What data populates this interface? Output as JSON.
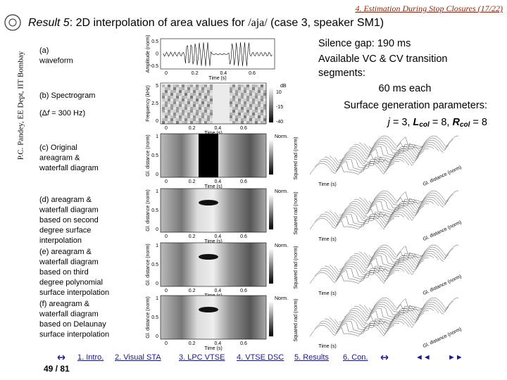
{
  "header": {
    "section": "4. Estimation During Stop Closures (17/22)",
    "title_prefix": "Result 5",
    "title_main": ": 2D interpolation of area values for ",
    "title_phon": "/aja/",
    "title_suffix": " (case 3, speaker SM1)"
  },
  "side_label": "P.C. Pandey, EE Dept, IIT Bombay",
  "notes": {
    "lines": [
      "Silence gap: 190 ms",
      "Available VC & CV transition",
      "segments:",
      "60 ms each",
      "Surface generation parameters:"
    ],
    "params": [
      "j",
      " = 3, ",
      "L",
      "col",
      " = 8, ",
      "R",
      "col",
      " = 8"
    ]
  },
  "captions": [
    [
      "(a)",
      "waveform"
    ],
    [
      "(b) Spectrogram"
    ],
    [
      "(c) Original",
      "areagram &",
      "waterfall diagram"
    ],
    [
      "(d) areagram &",
      "waterfall diagram",
      "based on second",
      "degree surface",
      "interpolation"
    ],
    [
      "(e) areagram &",
      "waterfall diagram",
      "based on third",
      "degree polynomial",
      "surface interpolation"
    ],
    [
      "(f) areagram &",
      "waterfall diagram",
      "based on Delaunay",
      "surface interpolation"
    ]
  ],
  "resolution": [
    "(Δ",
    "f",
    " = 300 Hz)"
  ],
  "figures": {
    "waveform": {
      "ylabel": "Amplitude (norm)",
      "yticks": [
        "0.5",
        "0",
        "-0.5"
      ],
      "xticks": [
        "0",
        "0.2",
        "0.4",
        "0.6"
      ],
      "xlabel": "Time (s)"
    },
    "spectrogram": {
      "ylabel": "Frequency (kHz)",
      "yticks": [
        "5",
        "2.5",
        "0"
      ],
      "xticks": [
        "0",
        "0.2",
        "0.4",
        "0.6"
      ],
      "xlabel": "Time (s)",
      "colorbar_title": "dB",
      "colorbar_ticks": [
        "10",
        "-15",
        "-40"
      ]
    },
    "areagrams": [
      {
        "ylabel": "Gl. distance (norm)",
        "yticks": [
          "1",
          "0.5",
          "0"
        ],
        "xticks": [
          "0",
          "0.2",
          "0.4",
          "0.6"
        ],
        "xlabel": "Time (s)",
        "colorbar_title": "Norm."
      },
      {
        "ylabel": "Gl. distance (norm)",
        "yticks": [
          "1",
          "0.5",
          "0"
        ],
        "xticks": [
          "0",
          "0.2",
          "0.4",
          "0.6"
        ],
        "xlabel": "Time (s)",
        "colorbar_title": "Norm."
      },
      {
        "ylabel": "Gl. distance (norm)",
        "yticks": [
          "1",
          "0.5",
          "0"
        ],
        "xticks": [
          "0",
          "0.2",
          "0.4",
          "0.6"
        ],
        "xlabel": "Time (s)",
        "colorbar_title": "Norm."
      },
      {
        "ylabel": "Gl. distance (norm)",
        "yticks": [
          "1",
          "0.5",
          "0"
        ],
        "xticks": [
          "0",
          "0.2",
          "0.4",
          "0.6"
        ],
        "xlabel": "Time (s)",
        "colorbar_title": "Norm."
      }
    ],
    "waterfalls": [
      {
        "zlabel": "Squared rad (norm)",
        "xlabel": "Time (s)",
        "ylabel": "Gl. distance (norm)"
      },
      {
        "zlabel": "Squared rad (norm)",
        "xlabel": "Time (s)",
        "ylabel": "Gl. distance (norm)"
      },
      {
        "zlabel": "Squared rad (norm)",
        "xlabel": "Time (s)",
        "ylabel": "Gl. distance (norm)"
      },
      {
        "zlabel": "Squared rad (norm)",
        "xlabel": "Time (s)",
        "ylabel": "Gl. distance (norm)"
      }
    ]
  },
  "nav": {
    "links": [
      "1. Intro.",
      "2. Visual STA",
      "3. LPC VTSE",
      "4. VTSE DSC",
      "5. Results",
      "6. Con."
    ],
    "prev": "◄◄",
    "next": "►►",
    "page": "49 / 81"
  }
}
